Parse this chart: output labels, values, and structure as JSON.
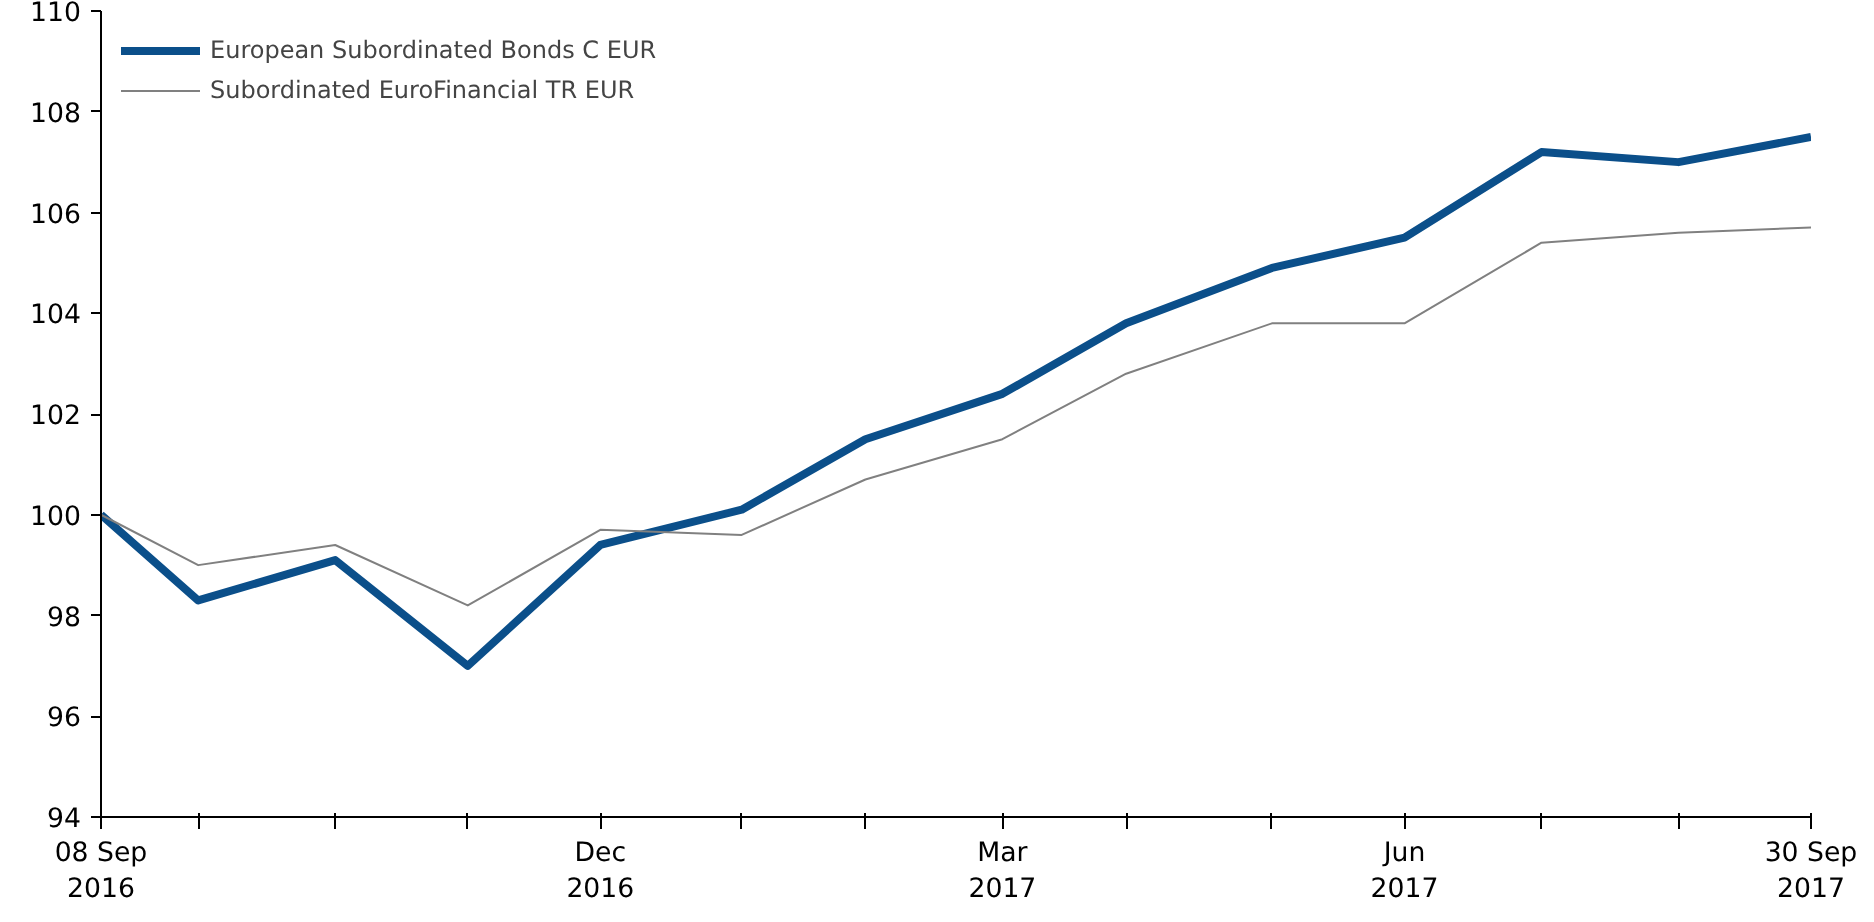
{
  "chart_data": {
    "type": "line",
    "x": [
      "2016-09-08",
      "2016-09-30",
      "2016-10-31",
      "2016-11-30",
      "2016-12-30",
      "2017-01-31",
      "2017-02-28",
      "2017-03-31",
      "2017-04-28",
      "2017-05-31",
      "2017-06-30",
      "2017-07-31",
      "2017-08-31",
      "2017-09-30"
    ],
    "series": [
      {
        "name": "European Subordinated Bonds C EUR",
        "color": "#0b4f8a",
        "values": [
          100,
          98.3,
          99.1,
          97.0,
          99.4,
          100.1,
          101.5,
          102.4,
          103.8,
          104.9,
          105.5,
          107.2,
          107.0,
          107.5
        ]
      },
      {
        "name": "Subordinated EuroFinancial TR EUR",
        "color": "#808080",
        "values": [
          100,
          99.0,
          99.4,
          98.2,
          99.7,
          99.6,
          100.7,
          101.5,
          102.8,
          103.8,
          103.8,
          105.4,
          105.6,
          105.7
        ]
      }
    ],
    "xlim": [
      "2016-09-08",
      "2017-09-30"
    ],
    "xticks": [
      {
        "value": "2016-09-08",
        "label": "08 Sep\n2016"
      },
      {
        "value": "2016-09-30",
        "label": null
      },
      {
        "value": "2016-10-31",
        "label": null
      },
      {
        "value": "2016-11-30",
        "label": null
      },
      {
        "value": "2016-12-30",
        "label": "Dec\n2016"
      },
      {
        "value": "2017-01-31",
        "label": null
      },
      {
        "value": "2017-02-28",
        "label": null
      },
      {
        "value": "2017-03-31",
        "label": "Mar\n2017"
      },
      {
        "value": "2017-04-28",
        "label": null
      },
      {
        "value": "2017-05-31",
        "label": null
      },
      {
        "value": "2017-06-30",
        "label": "Jun\n2017"
      },
      {
        "value": "2017-07-31",
        "label": null
      },
      {
        "value": "2017-08-31",
        "label": null
      },
      {
        "value": "2017-09-30",
        "label": "30 Sep\n2017"
      }
    ],
    "ylim": [
      94,
      110
    ],
    "yticks": [
      94,
      96,
      98,
      100,
      102,
      104,
      106,
      108,
      110
    ],
    "grid": false,
    "legend": "top left",
    "marker": "none",
    "line_style": "solid"
  }
}
